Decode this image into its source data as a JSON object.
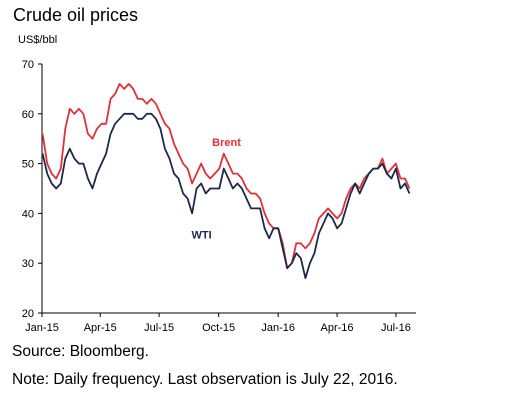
{
  "chart_data": {
    "type": "line",
    "title": "Crude oil prices",
    "ylabel": "US$/bbl",
    "xlabel": "",
    "ylim": [
      20,
      70
    ],
    "yticks": [
      20,
      30,
      40,
      50,
      60,
      70
    ],
    "xlim": [
      "2015-01-01",
      "2016-08-01"
    ],
    "xticks": [
      {
        "label": "Jan-15",
        "date": "2015-01-01"
      },
      {
        "label": "Apr-15",
        "date": "2015-04-01"
      },
      {
        "label": "Jul-15",
        "date": "2015-07-01"
      },
      {
        "label": "Oct-15",
        "date": "2015-10-01"
      },
      {
        "label": "Jan-16",
        "date": "2016-01-01"
      },
      {
        "label": "Apr-16",
        "date": "2016-04-01"
      },
      {
        "label": "Jul-16",
        "date": "2016-07-01"
      }
    ],
    "grid": false,
    "series": [
      {
        "name": "Brent",
        "color": "#e03038",
        "x": [
          "2015-01-02",
          "2015-01-09",
          "2015-01-16",
          "2015-01-23",
          "2015-01-30",
          "2015-02-06",
          "2015-02-13",
          "2015-02-20",
          "2015-02-27",
          "2015-03-06",
          "2015-03-13",
          "2015-03-20",
          "2015-03-27",
          "2015-04-03",
          "2015-04-10",
          "2015-04-17",
          "2015-04-24",
          "2015-05-01",
          "2015-05-08",
          "2015-05-15",
          "2015-05-22",
          "2015-05-29",
          "2015-06-05",
          "2015-06-12",
          "2015-06-19",
          "2015-06-26",
          "2015-07-03",
          "2015-07-10",
          "2015-07-17",
          "2015-07-24",
          "2015-07-31",
          "2015-08-07",
          "2015-08-14",
          "2015-08-21",
          "2015-08-28",
          "2015-09-04",
          "2015-09-11",
          "2015-09-18",
          "2015-09-25",
          "2015-10-02",
          "2015-10-09",
          "2015-10-16",
          "2015-10-23",
          "2015-10-30",
          "2015-11-06",
          "2015-11-13",
          "2015-11-20",
          "2015-11-27",
          "2015-12-04",
          "2015-12-11",
          "2015-12-18",
          "2015-12-25",
          "2016-01-01",
          "2016-01-08",
          "2016-01-15",
          "2016-01-22",
          "2016-01-29",
          "2016-02-05",
          "2016-02-12",
          "2016-02-19",
          "2016-02-26",
          "2016-03-04",
          "2016-03-11",
          "2016-03-18",
          "2016-03-25",
          "2016-04-01",
          "2016-04-08",
          "2016-04-15",
          "2016-04-22",
          "2016-04-29",
          "2016-05-06",
          "2016-05-13",
          "2016-05-20",
          "2016-05-27",
          "2016-06-03",
          "2016-06-10",
          "2016-06-17",
          "2016-06-24",
          "2016-07-01",
          "2016-07-08",
          "2016-07-15",
          "2016-07-22"
        ],
        "y": [
          56,
          50,
          48,
          47,
          49,
          57,
          61,
          60,
          61,
          60,
          56,
          55,
          57,
          58,
          58,
          63,
          64,
          66,
          65,
          66,
          65,
          63,
          63,
          62,
          63,
          62,
          60,
          58,
          57,
          54,
          52,
          50,
          49,
          46,
          48,
          50,
          48,
          47,
          48,
          49,
          52,
          50,
          48,
          48,
          47,
          45,
          44,
          44,
          43,
          40,
          38,
          37,
          37,
          34,
          29,
          30,
          34,
          34,
          33,
          34,
          36,
          39,
          40,
          41,
          40,
          39,
          40,
          43,
          45,
          46,
          45,
          47,
          48,
          49,
          49,
          51,
          48,
          49,
          50,
          47,
          47,
          45
        ]
      },
      {
        "name": "WTI",
        "color": "#1b2a4a",
        "x": [
          "2015-01-02",
          "2015-01-09",
          "2015-01-16",
          "2015-01-23",
          "2015-01-30",
          "2015-02-06",
          "2015-02-13",
          "2015-02-20",
          "2015-02-27",
          "2015-03-06",
          "2015-03-13",
          "2015-03-20",
          "2015-03-27",
          "2015-04-03",
          "2015-04-10",
          "2015-04-17",
          "2015-04-24",
          "2015-05-01",
          "2015-05-08",
          "2015-05-15",
          "2015-05-22",
          "2015-05-29",
          "2015-06-05",
          "2015-06-12",
          "2015-06-19",
          "2015-06-26",
          "2015-07-03",
          "2015-07-10",
          "2015-07-17",
          "2015-07-24",
          "2015-07-31",
          "2015-08-07",
          "2015-08-14",
          "2015-08-21",
          "2015-08-28",
          "2015-09-04",
          "2015-09-11",
          "2015-09-18",
          "2015-09-25",
          "2015-10-02",
          "2015-10-09",
          "2015-10-16",
          "2015-10-23",
          "2015-10-30",
          "2015-11-06",
          "2015-11-13",
          "2015-11-20",
          "2015-11-27",
          "2015-12-04",
          "2015-12-11",
          "2015-12-18",
          "2015-12-25",
          "2016-01-01",
          "2016-01-08",
          "2016-01-15",
          "2016-01-22",
          "2016-01-29",
          "2016-02-05",
          "2016-02-12",
          "2016-02-19",
          "2016-02-26",
          "2016-03-04",
          "2016-03-11",
          "2016-03-18",
          "2016-03-25",
          "2016-04-01",
          "2016-04-08",
          "2016-04-15",
          "2016-04-22",
          "2016-04-29",
          "2016-05-06",
          "2016-05-13",
          "2016-05-20",
          "2016-05-27",
          "2016-06-03",
          "2016-06-10",
          "2016-06-17",
          "2016-06-24",
          "2016-07-01",
          "2016-07-08",
          "2016-07-15",
          "2016-07-22"
        ],
        "y": [
          52,
          48,
          46,
          45,
          46,
          51,
          53,
          51,
          50,
          50,
          47,
          45,
          48,
          50,
          52,
          56,
          58,
          59,
          60,
          60,
          60,
          59,
          59,
          60,
          60,
          59,
          57,
          53,
          51,
          48,
          47,
          44,
          43,
          40,
          45,
          46,
          44,
          45,
          45,
          45,
          49,
          47,
          45,
          46,
          45,
          43,
          41,
          41,
          41,
          37,
          35,
          37,
          37,
          33,
          29,
          30,
          32,
          31,
          27,
          30,
          32,
          36,
          38,
          40,
          39,
          37,
          38,
          41,
          44,
          46,
          44,
          46,
          48,
          49,
          49,
          50,
          48,
          47,
          49,
          45,
          46,
          44
        ]
      }
    ],
    "annotations": [
      {
        "text": "Brent",
        "series": "Brent"
      },
      {
        "text": "WTI",
        "series": "WTI"
      }
    ]
  },
  "source": "Source: Bloomberg.",
  "note": "Note: Daily frequency. Last observation is July 22, 2016."
}
